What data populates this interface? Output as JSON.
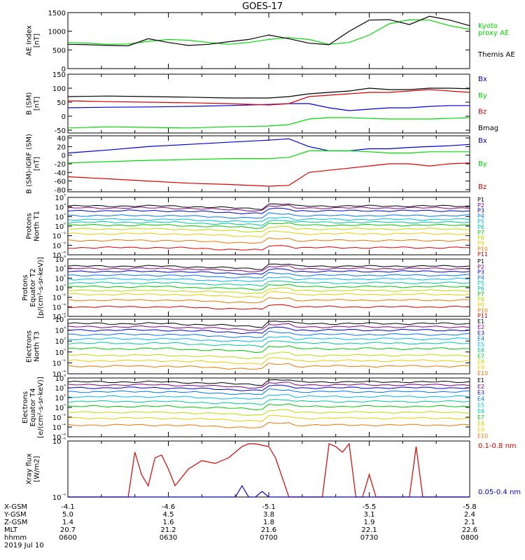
{
  "title": "GOES-17",
  "colors": {
    "black": "#000000",
    "blue": "#0000dd",
    "green": "#00dd00",
    "red": "#dd0000",
    "chan": [
      "#000000",
      "#880088",
      "#0000cc",
      "#0077ee",
      "#00bbee",
      "#00cc99",
      "#00cc00",
      "#bbdd00",
      "#eecc00",
      "#ee7700",
      "#dd0000"
    ]
  },
  "chart_data": [
    {
      "type": "line",
      "ylabel": [
        "AE Index",
        "[nT]"
      ],
      "ylim": [
        0,
        1500
      ],
      "yticks": [
        {
          "v": 0,
          "t": "0"
        },
        {
          "v": 500,
          "t": "500"
        },
        {
          "v": 1000,
          "t": "1000"
        },
        {
          "v": 1500,
          "t": "1500"
        }
      ],
      "log": false,
      "series": [
        {
          "name": "Kyoto proxy AE",
          "color": "#00dd00",
          "x": [
            0,
            3,
            6,
            9,
            12,
            15,
            18,
            21,
            24,
            27,
            30,
            33,
            36,
            39,
            42,
            45,
            48,
            51,
            54,
            57,
            60
          ],
          "y": [
            700,
            680,
            650,
            660,
            730,
            780,
            760,
            700,
            650,
            700,
            780,
            830,
            780,
            650,
            700,
            900,
            1200,
            1310,
            1300,
            1150,
            1050
          ]
        },
        {
          "name": "Themis AE",
          "color": "#000000",
          "x": [
            0,
            3,
            6,
            9,
            12,
            15,
            18,
            21,
            24,
            27,
            30,
            33,
            36,
            39,
            42,
            45,
            48,
            51,
            54,
            57,
            60
          ],
          "y": [
            650,
            640,
            620,
            610,
            800,
            700,
            620,
            650,
            720,
            780,
            900,
            800,
            680,
            640,
            1000,
            1300,
            1310,
            1180,
            1400,
            1300,
            1150
          ]
        }
      ],
      "legend": [
        {
          "label": "Kyoto",
          "color": "#00dd00"
        },
        {
          "label": "proxy AE",
          "color": "#00dd00"
        },
        {
          "label": "Themis AE",
          "color": "#000000"
        }
      ]
    },
    {
      "type": "line",
      "ylabel": [
        "B (SM)",
        "[nT]"
      ],
      "ylim": [
        -60,
        150
      ],
      "yticks": [
        {
          "v": -50,
          "t": "-50"
        },
        {
          "v": 0,
          "t": "0"
        },
        {
          "v": 50,
          "t": "50"
        },
        {
          "v": 100,
          "t": "100"
        },
        {
          "v": 150,
          "t": "150"
        }
      ],
      "log": false,
      "series": [
        {
          "name": "Bx",
          "color": "#0000dd",
          "x": [
            0,
            6,
            12,
            18,
            24,
            30,
            33,
            36,
            39,
            42,
            45,
            48,
            51,
            54,
            57,
            60
          ],
          "y": [
            30,
            32,
            33,
            35,
            38,
            42,
            45,
            45,
            30,
            20,
            25,
            30,
            30,
            35,
            38,
            38
          ]
        },
        {
          "name": "By",
          "color": "#00dd00",
          "x": [
            0,
            6,
            12,
            18,
            24,
            30,
            33,
            36,
            39,
            42,
            45,
            48,
            51,
            54,
            57,
            60
          ],
          "y": [
            -42,
            -38,
            -40,
            -42,
            -38,
            -35,
            -30,
            -10,
            -5,
            -5,
            -8,
            -10,
            -10,
            -10,
            -8,
            -5
          ]
        },
        {
          "name": "Bz",
          "color": "#dd0000",
          "x": [
            0,
            6,
            12,
            18,
            24,
            30,
            33,
            36,
            39,
            42,
            45,
            48,
            51,
            54,
            57,
            60
          ],
          "y": [
            55,
            52,
            50,
            48,
            45,
            40,
            45,
            70,
            75,
            80,
            85,
            85,
            90,
            95,
            90,
            85
          ]
        },
        {
          "name": "Bmag",
          "color": "#000000",
          "x": [
            0,
            6,
            12,
            18,
            24,
            30,
            33,
            36,
            39,
            42,
            45,
            48,
            51,
            54,
            57,
            60
          ],
          "y": [
            70,
            72,
            70,
            68,
            65,
            65,
            70,
            80,
            85,
            90,
            100,
            95,
            95,
            100,
            100,
            98
          ]
        }
      ],
      "legend": [
        {
          "label": "Bx",
          "color": "#0000dd"
        },
        {
          "label": "By",
          "color": "#00dd00"
        },
        {
          "label": "Bz",
          "color": "#dd0000"
        },
        {
          "label": "Bmag",
          "color": "#000000"
        }
      ]
    },
    {
      "type": "line",
      "ylabel": [
        "B (SM)-IGRF (SM)",
        "[nT]"
      ],
      "ylim": [
        -85,
        45
      ],
      "yticks": [
        {
          "v": -80,
          "t": "-80"
        },
        {
          "v": -60,
          "t": "-60"
        },
        {
          "v": -40,
          "t": "-40"
        },
        {
          "v": -20,
          "t": "-20"
        },
        {
          "v": 0,
          "t": "0"
        },
        {
          "v": 20,
          "t": "20"
        },
        {
          "v": 40,
          "t": "40"
        }
      ],
      "log": false,
      "series": [
        {
          "name": "Bx",
          "color": "#0000dd",
          "x": [
            0,
            6,
            12,
            18,
            24,
            30,
            33,
            36,
            39,
            42,
            45,
            48,
            51,
            54,
            57,
            60
          ],
          "y": [
            5,
            12,
            20,
            25,
            30,
            35,
            38,
            20,
            10,
            10,
            15,
            15,
            18,
            20,
            22,
            25
          ]
        },
        {
          "name": "By",
          "color": "#00dd00",
          "x": [
            0,
            6,
            12,
            18,
            24,
            30,
            33,
            36,
            39,
            42,
            45,
            48,
            51,
            54,
            57,
            60
          ],
          "y": [
            -18,
            -15,
            -12,
            -10,
            -8,
            -8,
            -5,
            10,
            10,
            10,
            8,
            5,
            5,
            8,
            8,
            8
          ]
        },
        {
          "name": "Bz",
          "color": "#dd0000",
          "x": [
            0,
            6,
            12,
            18,
            24,
            30,
            33,
            36,
            39,
            42,
            45,
            48,
            51,
            54,
            57,
            60
          ],
          "y": [
            -50,
            -55,
            -60,
            -65,
            -68,
            -72,
            -70,
            -40,
            -35,
            -30,
            -25,
            -20,
            -20,
            -25,
            -20,
            -18
          ]
        }
      ],
      "legend": [
        {
          "label": "Bx",
          "color": "#0000dd"
        },
        {
          "label": "By",
          "color": "#00dd00"
        },
        {
          "label": "Bz",
          "color": "#dd0000"
        }
      ]
    },
    {
      "type": "line",
      "ylabel": [
        "Protons",
        "North T1"
      ],
      "log": true,
      "decades": [
        -6,
        6
      ],
      "yticks": [
        {
          "v": -6,
          "t": "10⁻⁶"
        },
        {
          "v": -4,
          "t": "10⁻⁴"
        },
        {
          "v": -2,
          "t": "10⁻²"
        },
        {
          "v": 0,
          "t": "10⁰"
        },
        {
          "v": 2,
          "t": "10²"
        },
        {
          "v": 4,
          "t": "10⁴"
        },
        {
          "v": 6,
          "t": "10⁶"
        }
      ],
      "channels": [
        "P1",
        "P2",
        "P3",
        "P4",
        "P5",
        "P6",
        "P7",
        "P8",
        "P9",
        "P10",
        "P11"
      ],
      "channel_levels": [
        4.2,
        3.8,
        3.2,
        2.2,
        1.4,
        0.8,
        0.2,
        -0.6,
        -1.6,
        -3,
        -4.5
      ],
      "event_shift": [
        0,
        0,
        0,
        0,
        0,
        0,
        0,
        0,
        0,
        0,
        0
      ],
      "legend_side": "right"
    },
    {
      "type": "line",
      "ylabel": [
        "Protons",
        "Equator T2",
        "[p/(cm²-s-sr-keV)]"
      ],
      "log": true,
      "decades": [
        -6,
        6
      ],
      "yticks": [
        {
          "v": -6,
          "t": "10⁻⁶"
        },
        {
          "v": -4,
          "t": "10⁻⁴"
        },
        {
          "v": -2,
          "t": "10⁻²"
        },
        {
          "v": 0,
          "t": "10⁰"
        },
        {
          "v": 2,
          "t": "10²"
        },
        {
          "v": 4,
          "t": "10⁴"
        },
        {
          "v": 6,
          "t": "10⁶"
        }
      ],
      "channels": [
        "P1",
        "P2",
        "P3",
        "P4",
        "P5",
        "P6",
        "P7",
        "P8",
        "P9",
        "P10",
        "P11"
      ],
      "channel_levels": [
        4.5,
        4,
        3.4,
        2.6,
        1.8,
        1,
        0.2,
        -0.6,
        -1.4,
        -2.6,
        -4
      ],
      "legend_side": "right"
    },
    {
      "type": "line",
      "ylabel": [
        "Electrons",
        "North T3"
      ],
      "log": true,
      "decades": [
        -4,
        6
      ],
      "yticks": [
        {
          "v": -4,
          "t": "10⁻⁴"
        },
        {
          "v": -2,
          "t": "10⁻²"
        },
        {
          "v": 0,
          "t": "10⁰"
        },
        {
          "v": 2,
          "t": "10²"
        },
        {
          "v": 4,
          "t": "10⁴"
        },
        {
          "v": 6,
          "t": "10⁶"
        }
      ],
      "channels": [
        "E1",
        "E2",
        "E3",
        "E4",
        "E5",
        "E6",
        "E7",
        "E8",
        "E9",
        "E10"
      ],
      "channel_levels": [
        5.2,
        4.6,
        4,
        3.2,
        2.4,
        1.6,
        0.6,
        -0.6,
        -1.6,
        -2.6
      ],
      "legend_side": "right"
    },
    {
      "type": "line",
      "ylabel": [
        "Electrons",
        "Equator T4",
        "[e/(cm²-s-sr-keV)]"
      ],
      "log": true,
      "decades": [
        -6,
        6
      ],
      "yticks": [
        {
          "v": -6,
          "t": "10⁻⁶"
        },
        {
          "v": -4,
          "t": "10⁻⁴"
        },
        {
          "v": -2,
          "t": "10⁻²"
        },
        {
          "v": 0,
          "t": "10⁰"
        },
        {
          "v": 2,
          "t": "10²"
        },
        {
          "v": 4,
          "t": "10⁴"
        },
        {
          "v": 6,
          "t": "10⁶"
        }
      ],
      "channels": [
        "E1",
        "E2",
        "E3",
        "E4",
        "E5",
        "E6",
        "E7",
        "E8",
        "E9",
        "E10"
      ],
      "channel_levels": [
        5.2,
        4.6,
        4,
        3.2,
        2.2,
        1.2,
        0.2,
        -1,
        -2.2,
        -3.6
      ],
      "legend_side": "right"
    },
    {
      "type": "line",
      "ylabel": [
        "Xray flux",
        "[W/m2]"
      ],
      "log": true,
      "decades": [
        -9,
        -8
      ],
      "yticks": [
        {
          "v": -9,
          "t": "10⁻⁹"
        },
        {
          "v": -8,
          "t": "10⁻⁸"
        }
      ],
      "series": [
        {
          "name": "0.1-0.8 nm",
          "color": "#dd0000",
          "x": [
            0,
            5,
            9,
            10,
            11,
            12,
            13,
            14,
            15,
            16,
            18,
            20,
            22,
            24,
            26,
            27,
            28,
            30,
            31,
            33,
            34,
            36,
            38,
            39,
            40,
            41,
            42,
            43,
            44,
            45,
            46,
            47,
            48,
            50,
            51,
            52,
            53,
            54,
            55,
            57,
            60
          ],
          "y": [
            -9,
            -9,
            -9,
            -8.2,
            -8.6,
            -8.8,
            -8.3,
            -8.25,
            -8.5,
            -8.8,
            -8.5,
            -8.35,
            -8.4,
            -8.3,
            -8.1,
            -8.05,
            -8.05,
            -8.1,
            -8.3,
            -9,
            -9,
            -9,
            -9,
            -8.05,
            -8.1,
            -8.2,
            -8.05,
            -9,
            -9,
            -8.6,
            -9,
            -9,
            -9,
            -9,
            -9,
            -8.1,
            -9,
            -9,
            -9,
            -9,
            -9
          ]
        },
        {
          "name": "0.05-0.4 nm",
          "color": "#0000dd",
          "x": [
            0,
            25,
            26,
            27,
            28,
            29,
            30,
            31,
            60
          ],
          "y": [
            -9,
            -9,
            -8.8,
            -9,
            -9,
            -8.9,
            -9,
            -9,
            -9
          ]
        }
      ],
      "legend": [
        {
          "label": "0.1-0.8 nm",
          "color": "#dd0000"
        },
        {
          "label": "0.05-0.4 nm",
          "color": "#0000dd"
        }
      ]
    }
  ],
  "xaxis": {
    "row_labels": [
      "X-GSM",
      "Y-GSM",
      "Z-GSM",
      "MLT",
      "hhmm",
      "2019 Jul 10"
    ],
    "columns": [
      {
        "x": 0,
        "vals": [
          "-4.1",
          "5.0",
          "1.4",
          "20.7",
          "0600"
        ]
      },
      {
        "x": 15,
        "vals": [
          "-4.6",
          "4.5",
          "1.6",
          "21.2",
          "0630"
        ]
      },
      {
        "x": 30,
        "vals": [
          "-5.1",
          "3.8",
          "1.8",
          "21.6",
          "0700"
        ]
      },
      {
        "x": 45,
        "vals": [
          "-5.5",
          "3.1",
          "1.9",
          "22.1",
          "0730"
        ]
      },
      {
        "x": 60,
        "vals": [
          "-5.8",
          "2.4",
          "2.1",
          "22.6",
          "0800"
        ]
      }
    ]
  }
}
